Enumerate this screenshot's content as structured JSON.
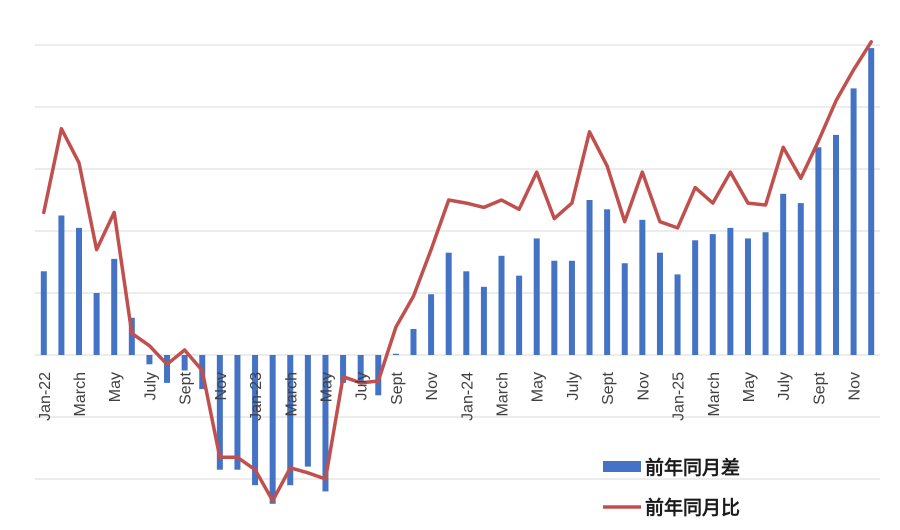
{
  "chart_data": {
    "type": "bar",
    "categories": [
      "Jan-22",
      "Feb-22",
      "Mar-22",
      "Apr-22",
      "May-22",
      "Jun-22",
      "Jul-22",
      "Aug-22",
      "Sep-22",
      "Oct-22",
      "Nov-22",
      "Dec-22",
      "Jan-23",
      "Feb-23",
      "Mar-23",
      "Apr-23",
      "May-23",
      "Jun-23",
      "Jul-23",
      "Aug-23",
      "Sep-23",
      "Oct-23",
      "Nov-23",
      "Dec-23",
      "Jan-24",
      "Feb-24",
      "Mar-24",
      "Apr-24",
      "May-24",
      "Jun-24",
      "Jul-24",
      "Aug-24",
      "Sep-24",
      "Oct-24",
      "Nov-24",
      "Dec-24",
      "Jan-25",
      "Feb-25",
      "Mar-25",
      "Apr-25",
      "May-25",
      "Jun-25",
      "Jul-25",
      "Aug-25",
      "Sep-25",
      "Oct-25",
      "Nov-25",
      "Dec-25"
    ],
    "tick_labels": [
      "Jan-22",
      "",
      "March",
      "",
      "May",
      "",
      "July",
      "",
      "Sept",
      "",
      "Nov",
      "",
      "Jan-23",
      "",
      "March",
      "",
      "May",
      "",
      "July",
      "",
      "Sept",
      "",
      "Nov",
      "",
      "Jan-24",
      "",
      "March",
      "",
      "May",
      "",
      "July",
      "",
      "Sept",
      "",
      "Nov",
      "",
      "Jan-25",
      "",
      "March",
      "",
      "May",
      "",
      "July",
      "",
      "Sept",
      "",
      "Nov",
      ""
    ],
    "series": [
      {
        "name": "前年同月差",
        "kind": "bar",
        "color": "#4472C4",
        "values": [
          1.35,
          2.25,
          2.05,
          1.0,
          1.55,
          0.6,
          -0.15,
          -0.45,
          -0.25,
          -0.55,
          -1.85,
          -1.85,
          -2.1,
          -2.4,
          -2.1,
          -1.8,
          -2.2,
          -0.45,
          -0.45,
          -0.65,
          0.02,
          0.42,
          0.98,
          1.65,
          1.35,
          1.1,
          1.6,
          1.28,
          1.88,
          1.52,
          1.52,
          2.5,
          2.35,
          1.48,
          2.18,
          1.65,
          1.3,
          1.85,
          1.95,
          2.05,
          1.88,
          1.98,
          2.6,
          2.45,
          3.35,
          3.55,
          4.3,
          4.95
        ]
      },
      {
        "name": "前年同月比",
        "kind": "line",
        "color": "#C0504D",
        "values": [
          2.3,
          3.65,
          3.1,
          1.7,
          2.3,
          0.35,
          0.15,
          -0.15,
          0.08,
          -0.25,
          -1.65,
          -1.65,
          -1.85,
          -2.35,
          -1.82,
          -1.9,
          -2.0,
          -0.35,
          -0.45,
          -0.42,
          0.45,
          0.95,
          1.7,
          2.5,
          2.45,
          2.38,
          2.5,
          2.35,
          2.95,
          2.2,
          2.45,
          3.6,
          3.05,
          2.15,
          2.95,
          2.15,
          2.05,
          2.7,
          2.45,
          2.95,
          2.45,
          2.42,
          3.35,
          2.85,
          3.45,
          4.1,
          4.6,
          5.05
        ]
      }
    ],
    "ylim": [
      -2.5,
      5.0
    ],
    "gridlines": [
      -2,
      -1,
      0,
      1,
      2,
      3,
      4,
      5
    ],
    "grid": true,
    "legend": "bottom-right",
    "xlabel": "",
    "ylabel": ""
  }
}
